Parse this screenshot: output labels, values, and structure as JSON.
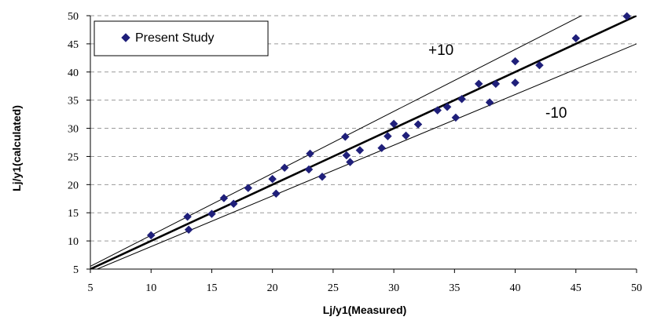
{
  "chart_data": {
    "type": "scatter",
    "xlabel": "Lj/y1(Measured)",
    "ylabel": "Lj/y1(calculated)",
    "xlim": [
      5,
      50
    ],
    "ylim": [
      5,
      50
    ],
    "xticks": [
      5,
      10,
      15,
      20,
      25,
      30,
      35,
      40,
      45,
      50
    ],
    "yticks": [
      5,
      10,
      15,
      20,
      25,
      30,
      35,
      40,
      45,
      50
    ],
    "grid": "horizontal dashed",
    "legend": {
      "position": "top-left",
      "entries": [
        "Present Study"
      ]
    },
    "series": [
      {
        "name": "Present Study",
        "marker": "diamond",
        "color": "#1f1f7a",
        "points": [
          [
            10,
            11
          ],
          [
            13,
            14.3
          ],
          [
            13.1,
            12
          ],
          [
            15,
            14.8
          ],
          [
            16,
            17.6
          ],
          [
            16.8,
            16.6
          ],
          [
            18,
            19.4
          ],
          [
            20,
            21
          ],
          [
            20.3,
            18.4
          ],
          [
            21,
            23
          ],
          [
            23,
            22.7
          ],
          [
            23.1,
            25.5
          ],
          [
            24.1,
            21.4
          ],
          [
            26,
            28.5
          ],
          [
            26.1,
            25.2
          ],
          [
            26.4,
            24
          ],
          [
            27.2,
            26.1
          ],
          [
            29,
            26.5
          ],
          [
            29.5,
            28.6
          ],
          [
            30,
            30.8
          ],
          [
            31,
            28.7
          ],
          [
            32,
            30.7
          ],
          [
            33.6,
            33.2
          ],
          [
            34.4,
            33.8
          ],
          [
            35.1,
            31.9
          ],
          [
            35.6,
            35.2
          ],
          [
            37,
            37.9
          ],
          [
            37.9,
            34.6
          ],
          [
            38.4,
            37.9
          ],
          [
            40,
            41.9
          ],
          [
            40,
            38.1
          ],
          [
            42,
            41.2
          ],
          [
            45,
            46
          ],
          [
            49.2,
            49.9
          ]
        ]
      }
    ],
    "reference_lines": [
      {
        "label": "",
        "slope": 1.0,
        "intercept": 0,
        "style": "bold"
      },
      {
        "label": "+10",
        "slope": 1.1,
        "intercept": 0,
        "style": "thin"
      },
      {
        "label": "-10",
        "slope": 0.9,
        "intercept": 0,
        "style": "thin"
      }
    ]
  }
}
